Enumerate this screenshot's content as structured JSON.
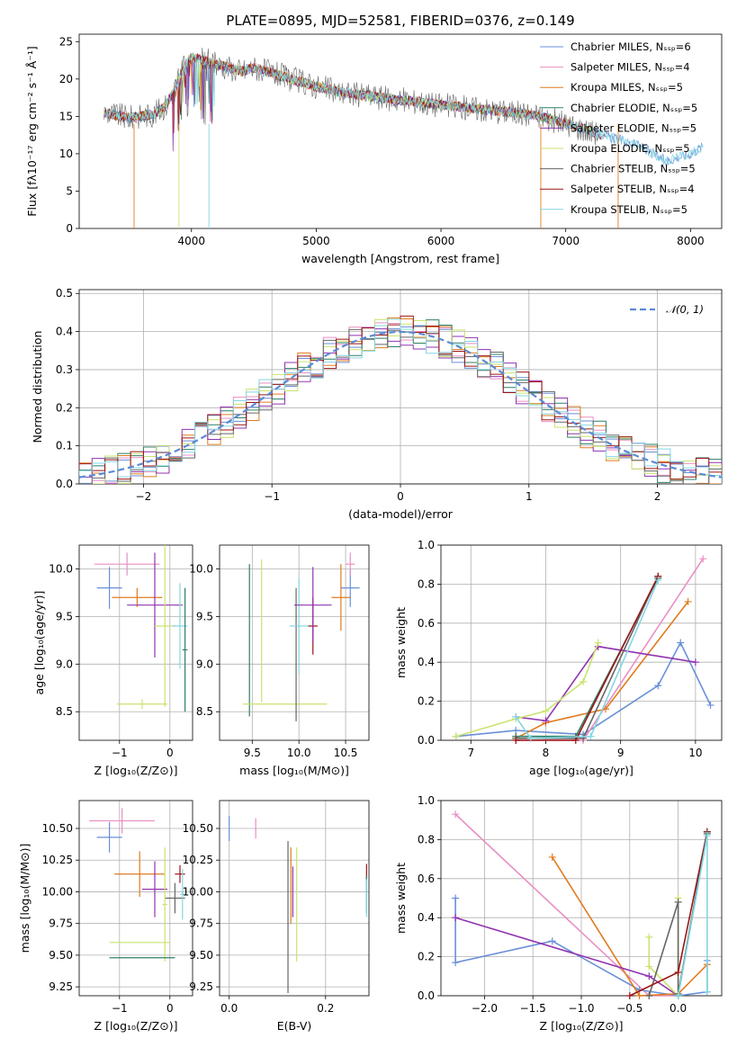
{
  "title": "PLATE=0895, MJD=52581, FIBERID=0376, z=0.149",
  "colors": {
    "blue": "#6a8fd8",
    "pink": "#e98fc3",
    "orange": "#e07c1f",
    "green": "#2f7f66",
    "purple": "#9133b0",
    "yellowgreen": "#c9e36e",
    "gray": "#666666",
    "darkred": "#9b1515",
    "cyan": "#85d6e3"
  },
  "chart_data": [
    {
      "type": "line",
      "title": "PLATE=0895, MJD=52581, FIBERID=0376, z=0.149",
      "xlabel": "wavelength [Angstrom, rest frame]",
      "ylabel": "Flux [fλ10⁻¹⁷ erg cm⁻² s⁻¹ Å⁻¹]",
      "xlim": [
        3100,
        8250
      ],
      "ylim": [
        0,
        26
      ],
      "xticks": [
        "4000",
        "5000",
        "6000",
        "7000",
        "8000"
      ],
      "yticks": [
        "0",
        "5",
        "10",
        "15",
        "20",
        "25"
      ],
      "legend_position": "top-right",
      "legend": [
        "Chabrier MILES, Nₛₛₚ=6",
        "Salpeter MILES, Nₛₛₚ=4",
        "Kroupa MILES, Nₛₛₚ=5",
        "Chabrier ELODIE, Nₛₛₚ=5",
        "Salpeter ELODIE, Nₛₛₚ=5",
        "Kroupa ELODIE, Nₛₛₚ=5",
        "Chabrier STELIB, Nₛₛₚ=5",
        "Salpeter STELIB, Nₛₛₚ=4",
        "Kroupa STELIB, Nₛₛₚ=5"
      ],
      "series_colors": [
        "blue",
        "pink",
        "orange",
        "green",
        "purple",
        "yellowgreen",
        "gray",
        "darkred",
        "cyan"
      ],
      "spectrum": {
        "x": [
          3300,
          3500,
          3700,
          3800,
          3900,
          3950,
          4000,
          4100,
          4200,
          4300,
          4400,
          4500,
          4600,
          4700,
          4800,
          4900,
          5000,
          5200,
          5400,
          5600,
          5800,
          6000,
          6200,
          6400,
          6600,
          6800,
          7000,
          7200,
          7400,
          7600,
          7700,
          7800,
          7900,
          8000,
          8100
        ],
        "y": [
          15.5,
          14.8,
          15.3,
          16.5,
          20,
          22,
          23,
          22.5,
          22,
          21.5,
          21,
          21.5,
          21,
          20.5,
          20,
          19.5,
          19,
          18.2,
          17.8,
          17.3,
          17,
          16.5,
          16.2,
          15.8,
          15.5,
          15,
          14,
          13,
          12,
          11,
          10,
          9,
          9.5,
          10,
          11
        ]
      }
    },
    {
      "type": "bar",
      "xlabel": "(data-model)/error",
      "ylabel": "Normed distribution",
      "xlim": [
        -2.5,
        2.5
      ],
      "ylim": [
        0,
        0.51
      ],
      "xticks": [
        "−2",
        "−1",
        "0",
        "1",
        "2"
      ],
      "yticks": [
        "0.0",
        "0.1",
        "0.2",
        "0.3",
        "0.4",
        "0.5"
      ],
      "legend": [
        "𝒩(0, 1)"
      ],
      "legend_position": "top-right",
      "bin_width": 0.1,
      "series_colors": [
        "blue",
        "pink",
        "orange",
        "green",
        "purple",
        "yellowgreen",
        "gray",
        "darkred",
        "cyan"
      ]
    },
    {
      "type": "scatter",
      "xlabel": "Z [log₁₀(Z/Z⊙)]",
      "ylabel": "age  [log₁₀(age/yr)]",
      "xlim": [
        -1.8,
        0.45
      ],
      "ylim": [
        8.2,
        10.25
      ],
      "xticks": [
        "−1",
        "0"
      ],
      "yticks": [
        "8.5",
        "9.0",
        "9.5",
        "10.0"
      ],
      "points": [
        {
          "c": "pink",
          "x": -0.85,
          "y": 10.05,
          "xe": 0.65,
          "ye": 0.12
        },
        {
          "c": "blue",
          "x": -1.2,
          "y": 9.8,
          "xe": 0.25,
          "ye": 0.22
        },
        {
          "c": "orange",
          "x": -0.65,
          "y": 9.7,
          "xe": 0.5,
          "ye": 0.1
        },
        {
          "c": "purple",
          "x": -0.3,
          "y": 9.62,
          "xe": 0.55,
          "ye": 0.55
        },
        {
          "c": "yellowgreen",
          "x": -0.1,
          "y": 9.4,
          "xe": 0.2,
          "ye": 0.85
        },
        {
          "c": "cyan",
          "x": 0.2,
          "y": 9.4,
          "xe": 0.15,
          "ye": 0.45
        },
        {
          "c": "green",
          "x": 0.3,
          "y": 9.15,
          "xe": 0.05,
          "ye": 0.65
        },
        {
          "c": "yellowgreen",
          "x": -0.55,
          "y": 8.58,
          "xe": 0.5,
          "ye": 0.05
        }
      ]
    },
    {
      "type": "scatter",
      "xlabel": "mass [log₁₀(M/M⊙)]",
      "ylabel": "",
      "xlim": [
        9.15,
        10.75
      ],
      "ylim": [
        8.2,
        10.25
      ],
      "xticks": [
        "9.5",
        "10.0",
        "10.5"
      ],
      "yticks": [
        "8.5",
        "9.0",
        "9.5",
        "10.0"
      ],
      "points": [
        {
          "c": "green",
          "x": 9.47,
          "y": 9.25,
          "xe": 0.0,
          "ye": 0.8
        },
        {
          "c": "yellowgreen",
          "x": 9.6,
          "y": 9.35,
          "xe": 0.0,
          "ye": 0.75
        },
        {
          "c": "yellowgreen",
          "x": 9.85,
          "y": 8.58,
          "xe": 0.45,
          "ye": 0.0
        },
        {
          "c": "gray",
          "x": 9.97,
          "y": 9.1,
          "xe": 0.0,
          "ye": 0.7
        },
        {
          "c": "cyan",
          "x": 10.0,
          "y": 9.4,
          "xe": 0.1,
          "ye": 0.5
        },
        {
          "c": "darkred",
          "x": 10.15,
          "y": 9.4,
          "xe": 0.05,
          "ye": 0.3
        },
        {
          "c": "purple",
          "x": 10.15,
          "y": 9.62,
          "xe": 0.2,
          "ye": 0.4
        },
        {
          "c": "orange",
          "x": 10.45,
          "y": 9.7,
          "xe": 0.1,
          "ye": 0.35
        },
        {
          "c": "blue",
          "x": 10.55,
          "y": 9.8,
          "xe": 0.1,
          "ye": 0.2
        },
        {
          "c": "pink",
          "x": 10.55,
          "y": 10.05,
          "xe": 0.05,
          "ye": 0.12
        }
      ]
    },
    {
      "type": "line",
      "xlabel": "age  [log₁₀(age/yr)]",
      "ylabel": "mass weight",
      "xlim": [
        6.6,
        10.35
      ],
      "ylim": [
        0,
        1.0
      ],
      "xticks": [
        "7",
        "8",
        "9",
        "10"
      ],
      "yticks": [
        "0.0",
        "0.2",
        "0.4",
        "0.6",
        "0.8",
        "1.0"
      ],
      "series": [
        {
          "c": "blue",
          "x": [
            6.8,
            7.6,
            8.5,
            9.5,
            9.8,
            10.2
          ],
          "y": [
            0.02,
            0.05,
            0.03,
            0.28,
            0.5,
            0.18
          ]
        },
        {
          "c": "pink",
          "x": [
            7.6,
            8.5,
            10.1
          ],
          "y": [
            0.0,
            0.0,
            0.93
          ]
        },
        {
          "c": "orange",
          "x": [
            7.6,
            8.0,
            8.8,
            9.9
          ],
          "y": [
            0.01,
            0.09,
            0.16,
            0.71
          ]
        },
        {
          "c": "green",
          "x": [
            7.6,
            8.4,
            9.5
          ],
          "y": [
            0.02,
            0.02,
            0.83
          ]
        },
        {
          "c": "purple",
          "x": [
            7.6,
            8.0,
            8.7,
            10.0
          ],
          "y": [
            0.12,
            0.1,
            0.48,
            0.4
          ]
        },
        {
          "c": "yellowgreen",
          "x": [
            6.8,
            7.6,
            8.0,
            8.5,
            8.7
          ],
          "y": [
            0.02,
            0.11,
            0.15,
            0.3,
            0.5
          ]
        },
        {
          "c": "gray",
          "x": [
            7.6,
            8.5,
            9.5
          ],
          "y": [
            0.01,
            0.01,
            0.84
          ]
        },
        {
          "c": "darkred",
          "x": [
            7.6,
            8.4,
            9.5
          ],
          "y": [
            0.0,
            0.0,
            0.84
          ]
        },
        {
          "c": "cyan",
          "x": [
            7.6,
            7.8,
            8.6,
            9.5
          ],
          "y": [
            0.12,
            0.01,
            0.02,
            0.82
          ]
        }
      ]
    },
    {
      "type": "scatter",
      "xlabel": "Z [log₁₀(Z/Z⊙)]",
      "ylabel": "mass [log₁₀(M/M⊙)]",
      "xlim": [
        -1.8,
        0.45
      ],
      "ylim": [
        9.18,
        10.72
      ],
      "xticks": [
        "−1",
        "0"
      ],
      "yticks": [
        "9.25",
        "9.50",
        "9.75",
        "10.00",
        "10.25",
        "10.50"
      ],
      "points": [
        {
          "c": "pink",
          "x": -0.95,
          "y": 10.56,
          "xe": 0.65,
          "ye": 0.1
        },
        {
          "c": "blue",
          "x": -1.2,
          "y": 10.43,
          "xe": 0.25,
          "ye": 0.12
        },
        {
          "c": "orange",
          "x": -0.6,
          "y": 10.14,
          "xe": 0.5,
          "ye": 0.18
        },
        {
          "c": "darkred",
          "x": 0.2,
          "y": 10.14,
          "xe": 0.1,
          "ye": 0.07
        },
        {
          "c": "purple",
          "x": -0.3,
          "y": 10.02,
          "xe": 0.25,
          "ye": 0.22
        },
        {
          "c": "gray",
          "x": 0.1,
          "y": 9.95,
          "xe": 0.2,
          "ye": 0.12
        },
        {
          "c": "cyan",
          "x": 0.25,
          "y": 9.98,
          "xe": 0.05,
          "ye": 0.2
        },
        {
          "c": "yellowgreen",
          "x": -0.1,
          "y": 9.9,
          "xe": 0.05,
          "ye": 0.45
        },
        {
          "c": "yellowgreen",
          "x": -0.6,
          "y": 9.6,
          "xe": 0.6,
          "ye": 0.0
        },
        {
          "c": "green",
          "x": -0.55,
          "y": 9.48,
          "xe": 0.65,
          "ye": 0.0
        }
      ]
    },
    {
      "type": "scatter",
      "xlabel": "E(B-V)",
      "ylabel": "",
      "xlim": [
        -0.02,
        0.29
      ],
      "ylim": [
        9.18,
        10.72
      ],
      "xticks": [
        "0.0",
        "0.2"
      ],
      "yticks": [
        "9.25",
        "9.50",
        "9.75",
        "10.00",
        "10.25",
        "10.50"
      ],
      "points": [
        {
          "c": "blue",
          "x": 0.0,
          "y": 10.5,
          "xe": 0.0,
          "ye": 0.1
        },
        {
          "c": "pink",
          "x": 0.055,
          "y": 10.5,
          "xe": 0.0,
          "ye": 0.08
        },
        {
          "c": "gray",
          "x": 0.122,
          "y": 9.8,
          "xe": 0.0,
          "ye": 0.6
        },
        {
          "c": "orange",
          "x": 0.128,
          "y": 10.05,
          "xe": 0.0,
          "ye": 0.3
        },
        {
          "c": "purple",
          "x": 0.132,
          "y": 10.0,
          "xe": 0.0,
          "ye": 0.2
        },
        {
          "c": "yellowgreen",
          "x": 0.14,
          "y": 9.9,
          "xe": 0.0,
          "ye": 0.45
        },
        {
          "c": "darkred",
          "x": 0.285,
          "y": 10.15,
          "xe": 0.0,
          "ye": 0.07
        },
        {
          "c": "green",
          "x": 0.285,
          "y": 9.98,
          "xe": 0.0,
          "ye": 0.15
        },
        {
          "c": "cyan",
          "x": 0.285,
          "y": 9.95,
          "xe": 0.0,
          "ye": 0.15
        }
      ]
    },
    {
      "type": "line",
      "xlabel": "Z [log₁₀(Z/Z⊙)]",
      "ylabel": "mass weight",
      "xlim": [
        -2.45,
        0.45
      ],
      "ylim": [
        0,
        1.0
      ],
      "xticks": [
        "−2.0",
        "−1.5",
        "−1.0",
        "−0.5",
        "0.0"
      ],
      "yticks": [
        "0.0",
        "0.2",
        "0.4",
        "0.6",
        "0.8",
        "1.0"
      ],
      "series": [
        {
          "c": "pink",
          "x": [
            -2.3,
            -0.3,
            0.0
          ],
          "y": [
            0.93,
            0.0,
            0.0
          ]
        },
        {
          "c": "blue",
          "x": [
            -2.3,
            -2.3,
            -1.3,
            -0.4,
            0.0,
            0.3,
            0.3
          ],
          "y": [
            0.5,
            0.17,
            0.28,
            0.03,
            0.0,
            0.02,
            0.18
          ]
        },
        {
          "c": "orange",
          "x": [
            -1.3,
            -0.4,
            0.0,
            0.3
          ],
          "y": [
            0.71,
            0.0,
            0.01,
            0.16
          ]
        },
        {
          "c": "purple",
          "x": [
            -2.3,
            -0.3,
            0.0
          ],
          "y": [
            0.4,
            0.1,
            0.0
          ]
        },
        {
          "c": "yellowgreen",
          "x": [
            -0.3,
            -0.3,
            0.0,
            0.0
          ],
          "y": [
            0.3,
            0.15,
            0.0,
            0.5
          ]
        },
        {
          "c": "gray",
          "x": [
            -0.3,
            0.0,
            0.0,
            0.3
          ],
          "y": [
            0.0,
            0.48,
            0.01,
            0.84
          ]
        },
        {
          "c": "darkred",
          "x": [
            -0.5,
            0.0,
            0.3
          ],
          "y": [
            0.0,
            0.12,
            0.84
          ]
        },
        {
          "c": "green",
          "x": [
            0.0,
            0.3
          ],
          "y": [
            0.0,
            0.83
          ]
        },
        {
          "c": "cyan",
          "x": [
            0.0,
            0.3,
            0.3
          ],
          "y": [
            0.0,
            0.82,
            0.02
          ]
        }
      ]
    }
  ]
}
